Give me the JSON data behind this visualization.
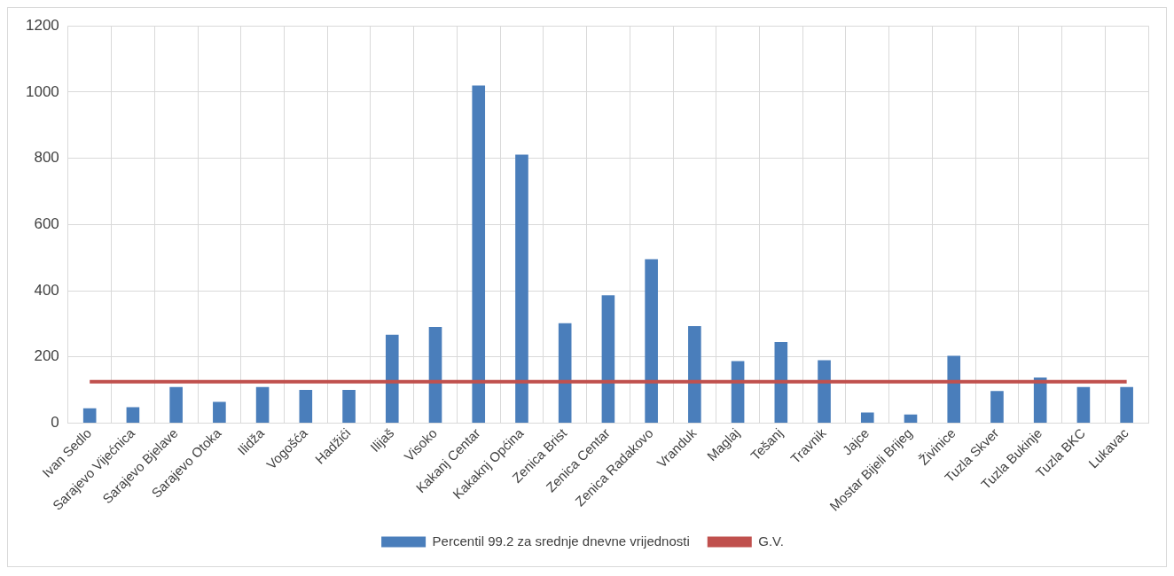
{
  "chart_data": {
    "type": "bar",
    "categories": [
      "Ivan Sedlo",
      "Sarajevo Vijećnica",
      "Sarajevo Bjelave",
      "Sarajevo Otoka",
      "Ilidža",
      "Vogošća",
      "Hadžići",
      "Ilijaš",
      "Visoko",
      "Kakanj Centar",
      "Kakaknj Općina",
      "Zenica Brist",
      "Zenica Centar",
      "Zenica Radakovo",
      "Vranduk",
      "Maglaj",
      "Tešanj",
      "Travnik",
      "Jajce",
      "Mostar Bijeli Brijeg",
      "Živinice",
      "Tuzla Skver",
      "Tuzla Bukinje",
      "Tuzla BKC",
      "Lukavac"
    ],
    "series": [
      {
        "name": "Percentil 99.2 za srednje dnevne vrijednosti",
        "type": "bar",
        "color": "#4a7ebb",
        "values": [
          45,
          48,
          109,
          64,
          109,
          100,
          100,
          267,
          290,
          1020,
          811,
          302,
          386,
          495,
          293,
          187,
          245,
          190,
          32,
          26,
          203,
          97,
          138,
          109,
          109
        ]
      },
      {
        "name": "G.V.",
        "type": "line",
        "color": "#c0504d",
        "values": [
          125,
          125,
          125,
          125,
          125,
          125,
          125,
          125,
          125,
          125,
          125,
          125,
          125,
          125,
          125,
          125,
          125,
          125,
          125,
          125,
          125,
          125,
          125,
          125,
          125
        ]
      }
    ],
    "ylim": [
      0,
      1200
    ],
    "yticks": [
      0,
      200,
      400,
      600,
      800,
      1000,
      1200
    ],
    "grid": true,
    "legend": "bottom",
    "marker": "none",
    "line_style": "solid"
  }
}
